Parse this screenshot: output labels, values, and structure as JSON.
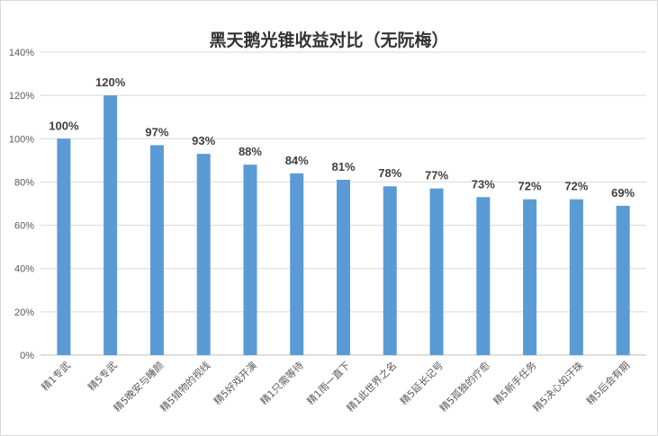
{
  "chart_data": {
    "type": "bar",
    "title": "黑天鹅光锥收益对比（无阮梅）",
    "xlabel": "",
    "ylabel": "",
    "ylim": [
      0,
      140
    ],
    "yticks": [
      "0%",
      "20%",
      "40%",
      "60%",
      "80%",
      "100%",
      "120%",
      "140%"
    ],
    "categories": [
      "精1专武",
      "精5专武",
      "精5晚安与睡颜",
      "精5猎物的视线",
      "精5好戏开演",
      "精1只需等待",
      "精1雨一直下",
      "精1此世界之名",
      "精5延长记号",
      "精5孤独的疗愈",
      "精5新手任务",
      "精5决心如汗珠",
      "精5后会有期"
    ],
    "values": [
      100,
      120,
      97,
      93,
      88,
      84,
      81,
      78,
      77,
      73,
      72,
      72,
      69
    ],
    "data_labels": [
      "100%",
      "120%",
      "97%",
      "93%",
      "88%",
      "84%",
      "81%",
      "78%",
      "77%",
      "73%",
      "72%",
      "72%",
      "69%"
    ],
    "bar_color": "#5b9bd5",
    "grid": true,
    "legend": "none"
  }
}
